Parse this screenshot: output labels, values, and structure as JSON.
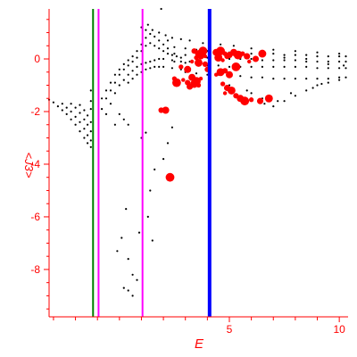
{
  "chart_data": {
    "type": "scatter",
    "title": "",
    "xlabel": "E",
    "ylabel": "<J3>",
    "xlim": [
      -3.2,
      10.4
    ],
    "ylim": [
      -9.8,
      1.9
    ],
    "x_major_ticks": [
      5,
      10
    ],
    "y_major_ticks": [
      0,
      -2,
      -4,
      -6,
      -8
    ],
    "x_tick_labels": [
      "5",
      "10"
    ],
    "y_tick_labels": [
      "0",
      "-2",
      "-4",
      "-6",
      "-8"
    ],
    "grid": false,
    "legend": "none",
    "axis_color": "#ff0000",
    "vertical_lines": [
      {
        "x": -1.2,
        "color": "#008000",
        "width": 2
      },
      {
        "x": -0.95,
        "color": "#ff00ff",
        "width": 2
      },
      {
        "x": 1.05,
        "color": "#ff00ff",
        "width": 2
      },
      {
        "x": 4.1,
        "color": "#0000ff",
        "width": 4
      }
    ],
    "series": [
      {
        "color": "#000000",
        "marker": "dot",
        "points": [
          [
            -3.2,
            -1.55
          ],
          [
            -3.0,
            -1.65
          ],
          [
            -2.8,
            -1.8
          ],
          [
            -2.6,
            -1.95
          ],
          [
            -2.4,
            -2.1
          ],
          [
            -2.2,
            -2.3
          ],
          [
            -2.0,
            -2.5
          ],
          [
            -1.8,
            -2.75
          ],
          [
            -1.6,
            -3.0
          ],
          [
            -1.45,
            -3.2
          ],
          [
            -1.3,
            -3.35
          ],
          [
            -2.6,
            -1.7
          ],
          [
            -2.4,
            -1.85
          ],
          [
            -2.2,
            -2.0
          ],
          [
            -2.0,
            -2.2
          ],
          [
            -1.8,
            -2.4
          ],
          [
            -1.6,
            -2.65
          ],
          [
            -1.45,
            -2.9
          ],
          [
            -1.3,
            -3.1
          ],
          [
            -2.2,
            -1.7
          ],
          [
            -2.0,
            -1.85
          ],
          [
            -1.8,
            -2.05
          ],
          [
            -1.6,
            -2.3
          ],
          [
            -1.45,
            -2.5
          ],
          [
            -1.3,
            -2.75
          ],
          [
            -1.8,
            -1.75
          ],
          [
            -1.6,
            -1.95
          ],
          [
            -1.45,
            -2.15
          ],
          [
            -1.3,
            -2.4
          ],
          [
            -1.3,
            -1.9
          ],
          [
            -1.3,
            -1.6
          ],
          [
            -1.3,
            -1.2
          ],
          [
            -0.8,
            -1.9
          ],
          [
            -0.6,
            -1.5
          ],
          [
            -0.4,
            -1.2
          ],
          [
            -0.2,
            -0.9
          ],
          [
            0.0,
            -0.6
          ],
          [
            0.2,
            -0.4
          ],
          [
            0.4,
            -0.25
          ],
          [
            0.6,
            -0.1
          ],
          [
            0.8,
            0.05
          ],
          [
            1.0,
            0.3
          ],
          [
            1.2,
            0.5
          ],
          [
            1.4,
            0.6
          ],
          [
            1.6,
            0.5
          ],
          [
            1.8,
            0.4
          ],
          [
            2.0,
            0.3
          ],
          [
            2.2,
            0.2
          ],
          [
            2.4,
            0.15
          ],
          [
            2.6,
            0.1
          ],
          [
            2.8,
            0.05
          ],
          [
            -0.8,
            -1.5
          ],
          [
            -0.6,
            -1.2
          ],
          [
            -0.4,
            -0.9
          ],
          [
            -0.2,
            -0.6
          ],
          [
            0.0,
            -0.4
          ],
          [
            0.2,
            -0.2
          ],
          [
            0.4,
            -0.05
          ],
          [
            0.6,
            0.1
          ],
          [
            0.8,
            0.3
          ],
          [
            1.0,
            0.55
          ],
          [
            1.2,
            0.8
          ],
          [
            1.4,
            0.95
          ],
          [
            1.6,
            0.85
          ],
          [
            1.8,
            0.7
          ],
          [
            2.0,
            0.55
          ],
          [
            2.2,
            0.4
          ],
          [
            -0.6,
            -2.1
          ],
          [
            -0.4,
            -1.7
          ],
          [
            -0.2,
            -1.3
          ],
          [
            0.0,
            -1.0
          ],
          [
            0.2,
            -0.8
          ],
          [
            0.4,
            -0.6
          ],
          [
            0.6,
            -0.45
          ],
          [
            0.8,
            -0.3
          ],
          [
            1.0,
            -0.2
          ],
          [
            1.2,
            -0.15
          ],
          [
            1.4,
            -0.1
          ],
          [
            1.6,
            -0.05
          ],
          [
            1.8,
            0.0
          ],
          [
            2.0,
            0.0
          ],
          [
            2.4,
            -0.05
          ],
          [
            2.8,
            -0.1
          ],
          [
            3.2,
            -0.1
          ],
          [
            0.4,
            -0.9
          ],
          [
            0.6,
            -0.75
          ],
          [
            0.8,
            -0.6
          ],
          [
            1.0,
            -0.5
          ],
          [
            1.2,
            -0.4
          ],
          [
            1.4,
            -0.35
          ],
          [
            1.6,
            -0.3
          ],
          [
            1.8,
            -0.3
          ],
          [
            2.0,
            -0.3
          ],
          [
            2.4,
            -0.35
          ],
          [
            2.8,
            -0.4
          ],
          [
            3.2,
            -0.45
          ],
          [
            1.2,
            1.1
          ],
          [
            1.5,
            1.1
          ],
          [
            1.8,
            1.0
          ],
          [
            2.1,
            0.9
          ],
          [
            2.4,
            0.8
          ],
          [
            1.9,
            1.9
          ],
          [
            1.0,
            1.2
          ],
          [
            1.3,
            1.3
          ],
          [
            2.2,
            0.7
          ],
          [
            0.2,
            -2.3
          ],
          [
            0.0,
            -2.1
          ],
          [
            -0.2,
            -2.5
          ],
          [
            0.4,
            -2.5
          ],
          [
            1.2,
            -2.8
          ],
          [
            1.0,
            -3.0
          ],
          [
            0.3,
            -5.7
          ],
          [
            0.1,
            -6.8
          ],
          [
            0.4,
            -7.6
          ],
          [
            0.6,
            -8.2
          ],
          [
            1.3,
            -6.0
          ],
          [
            1.4,
            -5.0
          ],
          [
            1.6,
            -4.2
          ],
          [
            0.9,
            -6.6
          ],
          [
            0.6,
            -9.0
          ],
          [
            0.4,
            -8.8
          ],
          [
            0.8,
            -8.4
          ],
          [
            1.5,
            -6.9
          ],
          [
            2.0,
            -3.8
          ],
          [
            2.2,
            -3.2
          ],
          [
            2.4,
            -2.6
          ],
          [
            0.2,
            -8.7
          ],
          [
            -0.1,
            -7.3
          ],
          [
            2.5,
            0.45
          ],
          [
            3.0,
            0.4
          ],
          [
            3.5,
            0.35
          ],
          [
            4.0,
            0.3
          ],
          [
            4.5,
            0.3
          ],
          [
            5.0,
            0.25
          ],
          [
            5.5,
            0.25
          ],
          [
            6.0,
            0.2
          ],
          [
            6.5,
            0.2
          ],
          [
            7.0,
            0.2
          ],
          [
            7.5,
            0.15
          ],
          [
            8.0,
            0.15
          ],
          [
            8.5,
            0.15
          ],
          [
            9.0,
            0.1
          ],
          [
            9.5,
            0.1
          ],
          [
            10.0,
            0.1
          ],
          [
            10.3,
            0.1
          ],
          [
            2.5,
            0.2
          ],
          [
            3.0,
            0.15
          ],
          [
            3.5,
            0.1
          ],
          [
            4.0,
            0.05
          ],
          [
            4.5,
            0.05
          ],
          [
            5.0,
            0.0
          ],
          [
            5.5,
            0.0
          ],
          [
            6.0,
            0.0
          ],
          [
            6.5,
            -0.05
          ],
          [
            7.0,
            -0.05
          ],
          [
            7.5,
            -0.05
          ],
          [
            8.0,
            -0.05
          ],
          [
            8.5,
            -0.1
          ],
          [
            9.0,
            -0.1
          ],
          [
            9.5,
            -0.1
          ],
          [
            10.0,
            -0.1
          ],
          [
            10.3,
            -0.1
          ],
          [
            2.5,
            -0.1
          ],
          [
            3.0,
            -0.15
          ],
          [
            3.5,
            -0.2
          ],
          [
            4.0,
            -0.25
          ],
          [
            4.5,
            -0.25
          ],
          [
            5.0,
            -0.3
          ],
          [
            5.5,
            -0.3
          ],
          [
            6.0,
            -0.3
          ],
          [
            6.5,
            -0.3
          ],
          [
            7.0,
            -0.3
          ],
          [
            7.5,
            -0.3
          ],
          [
            8.0,
            -0.3
          ],
          [
            8.5,
            -0.3
          ],
          [
            9.0,
            -0.35
          ],
          [
            9.5,
            -0.35
          ],
          [
            10.0,
            -0.35
          ],
          [
            10.3,
            -0.35
          ],
          [
            3.0,
            -0.5
          ],
          [
            3.5,
            -0.55
          ],
          [
            4.0,
            -0.6
          ],
          [
            4.5,
            -0.6
          ],
          [
            5.0,
            -0.65
          ],
          [
            5.5,
            -0.65
          ],
          [
            6.0,
            -0.7
          ],
          [
            6.5,
            -0.7
          ],
          [
            7.0,
            -0.75
          ],
          [
            7.5,
            -0.75
          ],
          [
            8.0,
            -0.75
          ],
          [
            8.5,
            -0.75
          ],
          [
            9.0,
            -0.75
          ],
          [
            9.5,
            -0.75
          ],
          [
            10.0,
            -0.7
          ],
          [
            10.3,
            -0.7
          ],
          [
            5.0,
            -1.0
          ],
          [
            6.0,
            -1.3
          ],
          [
            6.5,
            -1.5
          ],
          [
            7.0,
            -1.8
          ],
          [
            7.5,
            -1.6
          ],
          [
            8.0,
            -1.4
          ],
          [
            8.5,
            -1.2
          ],
          [
            9.0,
            -1.0
          ],
          [
            9.5,
            -0.9
          ],
          [
            10.0,
            -0.8
          ],
          [
            5.8,
            -1.2
          ],
          [
            7.2,
            -1.6
          ],
          [
            8.8,
            -1.1
          ],
          [
            6.6,
            -1.7
          ],
          [
            7.8,
            -1.3
          ],
          [
            9.2,
            -0.95
          ],
          [
            6.0,
            0.4
          ],
          [
            7.0,
            0.35
          ],
          [
            8.0,
            0.3
          ],
          [
            9.0,
            0.25
          ],
          [
            10.0,
            0.2
          ],
          [
            6.5,
            0.1
          ],
          [
            7.5,
            0.05
          ],
          [
            8.5,
            0.0
          ],
          [
            9.5,
            -0.2
          ],
          [
            10.2,
            -0.25
          ],
          [
            5.2,
            0.5
          ],
          [
            4.6,
            0.55
          ],
          [
            3.8,
            0.6
          ],
          [
            3.2,
            0.7
          ],
          [
            2.8,
            0.75
          ]
        ]
      },
      {
        "color": "#ff0000",
        "marker": "blob",
        "points": [
          [
            2.9,
            -0.8
          ],
          [
            3.1,
            -0.9
          ],
          [
            3.3,
            -0.7
          ],
          [
            3.5,
            -0.85
          ],
          [
            3.6,
            -1.0
          ],
          [
            3.2,
            -1.05
          ],
          [
            3.4,
            -0.95
          ],
          [
            3.7,
            -0.75
          ],
          [
            3.4,
            0.3
          ],
          [
            3.6,
            0.2
          ],
          [
            3.8,
            0.3
          ],
          [
            3.5,
            0.05
          ],
          [
            3.7,
            0.1
          ],
          [
            3.6,
            -0.15
          ],
          [
            3.3,
            -0.1
          ],
          [
            3.9,
            -0.2
          ],
          [
            4.4,
            0.25
          ],
          [
            4.6,
            0.3
          ],
          [
            4.8,
            0.2
          ],
          [
            5.0,
            0.15
          ],
          [
            4.5,
            0.05
          ],
          [
            4.7,
            -0.05
          ],
          [
            4.9,
            0.1
          ],
          [
            5.2,
            0.25
          ],
          [
            5.4,
            0.15
          ],
          [
            5.6,
            0.2
          ],
          [
            5.8,
            0.1
          ],
          [
            4.6,
            -0.5
          ],
          [
            4.4,
            -0.6
          ],
          [
            4.8,
            -0.45
          ],
          [
            5.0,
            -0.6
          ],
          [
            5.3,
            -0.3
          ],
          [
            4.7,
            -0.95
          ],
          [
            4.9,
            -1.1
          ],
          [
            5.1,
            -1.2
          ],
          [
            4.8,
            -1.3
          ],
          [
            5.3,
            -1.4
          ],
          [
            5.5,
            -1.5
          ],
          [
            5.7,
            -1.6
          ],
          [
            6.0,
            -1.55
          ],
          [
            6.4,
            -1.6
          ],
          [
            6.8,
            -1.5
          ],
          [
            3.9,
            0.1
          ],
          [
            4.0,
            -0.4
          ],
          [
            3.1,
            -0.4
          ],
          [
            2.6,
            -0.9
          ],
          [
            2.5,
            -0.75
          ],
          [
            6.2,
            0.0
          ],
          [
            6.5,
            0.2
          ],
          [
            5.9,
            -0.1
          ],
          [
            1.9,
            -1.95
          ],
          [
            2.1,
            -1.95
          ],
          [
            2.3,
            -4.5
          ],
          [
            2.8,
            -0.3
          ]
        ]
      }
    ]
  }
}
